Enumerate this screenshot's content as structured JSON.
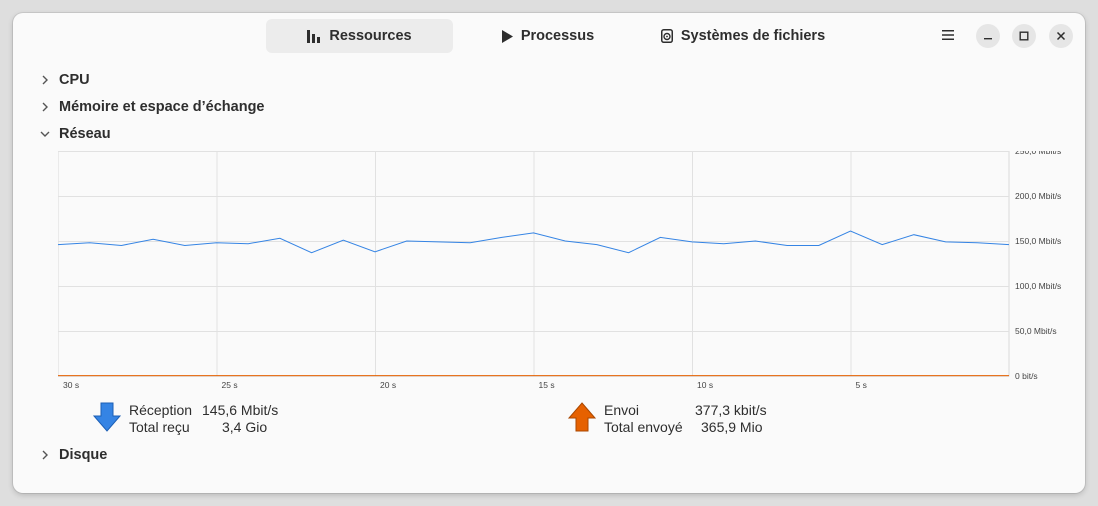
{
  "tabs": [
    {
      "label": "Ressources",
      "icon": "bar-chart-icon",
      "active": true
    },
    {
      "label": "Processus",
      "icon": "play-icon",
      "active": false
    },
    {
      "label": "Systèmes de fichiers",
      "icon": "disk-icon",
      "active": false
    }
  ],
  "sections": {
    "cpu": "CPU",
    "memory": "Mémoire et espace d’échange",
    "network": "Réseau",
    "disk": "Disque"
  },
  "network": {
    "receive": {
      "label": "Réception",
      "rate": "145,6 Mbit/s",
      "total_label": "Total reçu",
      "total": "3,4 Gio",
      "color": "#3584e4"
    },
    "send": {
      "label": "Envoi",
      "rate": "377,3 kbit/s",
      "total_label": "Total envoyé",
      "total": "365,9 Mio",
      "color": "#e66100"
    }
  },
  "chart_data": {
    "type": "line",
    "x_tick_labels": [
      "30 s",
      "25 s",
      "20 s",
      "15 s",
      "10 s",
      "5 s"
    ],
    "y_tick_labels": [
      "250,0 Mbit/s",
      "200,0 Mbit/s",
      "150,0 Mbit/s",
      "100,0 Mbit/s",
      "50,0 Mbit/s",
      "0 bit/s"
    ],
    "ylim": [
      0,
      250
    ],
    "xlim": [
      30,
      0
    ],
    "grid": true,
    "series": [
      {
        "name": "Réception",
        "color": "#3584e4",
        "x": [
          30,
          29,
          28,
          27,
          26,
          25,
          24,
          23,
          22,
          21,
          20,
          19,
          18,
          17,
          16,
          15,
          14,
          13,
          12,
          11,
          10,
          9,
          8,
          7,
          6,
          5,
          4,
          3,
          2,
          1,
          0
        ],
        "values": [
          146,
          148,
          145,
          152,
          145,
          148,
          147,
          153,
          137,
          151,
          138,
          150,
          149,
          148,
          154,
          159,
          150,
          146,
          137,
          154,
          149,
          147,
          150,
          145,
          145,
          161,
          146,
          157,
          149,
          148,
          146
        ]
      },
      {
        "name": "Envoi",
        "color": "#e66100",
        "x": [
          30,
          0
        ],
        "values": [
          0.4,
          0.4
        ]
      }
    ]
  }
}
